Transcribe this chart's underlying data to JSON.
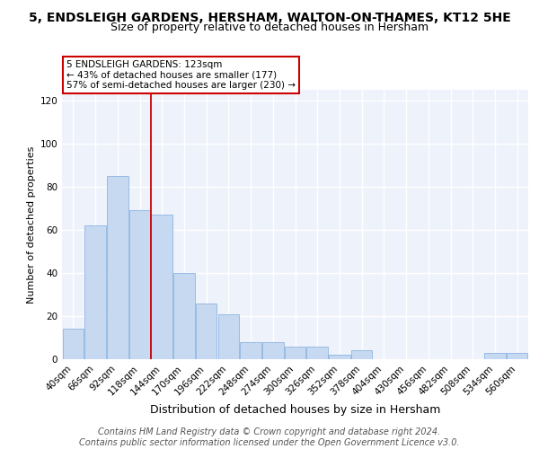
{
  "title": "5, ENDSLEIGH GARDENS, HERSHAM, WALTON-ON-THAMES, KT12 5HE",
  "subtitle": "Size of property relative to detached houses in Hersham",
  "xlabel": "Distribution of detached houses by size in Hersham",
  "ylabel": "Number of detached properties",
  "categories": [
    "40sqm",
    "66sqm",
    "92sqm",
    "118sqm",
    "144sqm",
    "170sqm",
    "196sqm",
    "222sqm",
    "248sqm",
    "274sqm",
    "300sqm",
    "326sqm",
    "352sqm",
    "378sqm",
    "404sqm",
    "430sqm",
    "456sqm",
    "482sqm",
    "508sqm",
    "534sqm",
    "560sqm"
  ],
  "values": [
    14,
    62,
    85,
    69,
    67,
    40,
    26,
    21,
    8,
    8,
    6,
    6,
    2,
    4,
    0,
    0,
    0,
    0,
    0,
    3,
    3
  ],
  "bar_color": "#c6d9f0",
  "bar_edge_color": "#8db4e2",
  "vline_x": 3.5,
  "vline_color": "#cc0000",
  "annotation_text": "5 ENDSLEIGH GARDENS: 123sqm\n← 43% of detached houses are smaller (177)\n57% of semi-detached houses are larger (230) →",
  "annotation_box_color": "white",
  "annotation_box_edge_color": "#cc0000",
  "ylim": [
    0,
    125
  ],
  "yticks": [
    0,
    20,
    40,
    60,
    80,
    100,
    120
  ],
  "footer_text": "Contains HM Land Registry data © Crown copyright and database right 2024.\nContains public sector information licensed under the Open Government Licence v3.0.",
  "bg_color": "#eef2fb",
  "grid_color": "white",
  "title_fontsize": 10,
  "subtitle_fontsize": 9,
  "xlabel_fontsize": 9,
  "ylabel_fontsize": 8,
  "tick_fontsize": 7.5,
  "footer_fontsize": 7,
  "ann_fontsize": 7.5
}
